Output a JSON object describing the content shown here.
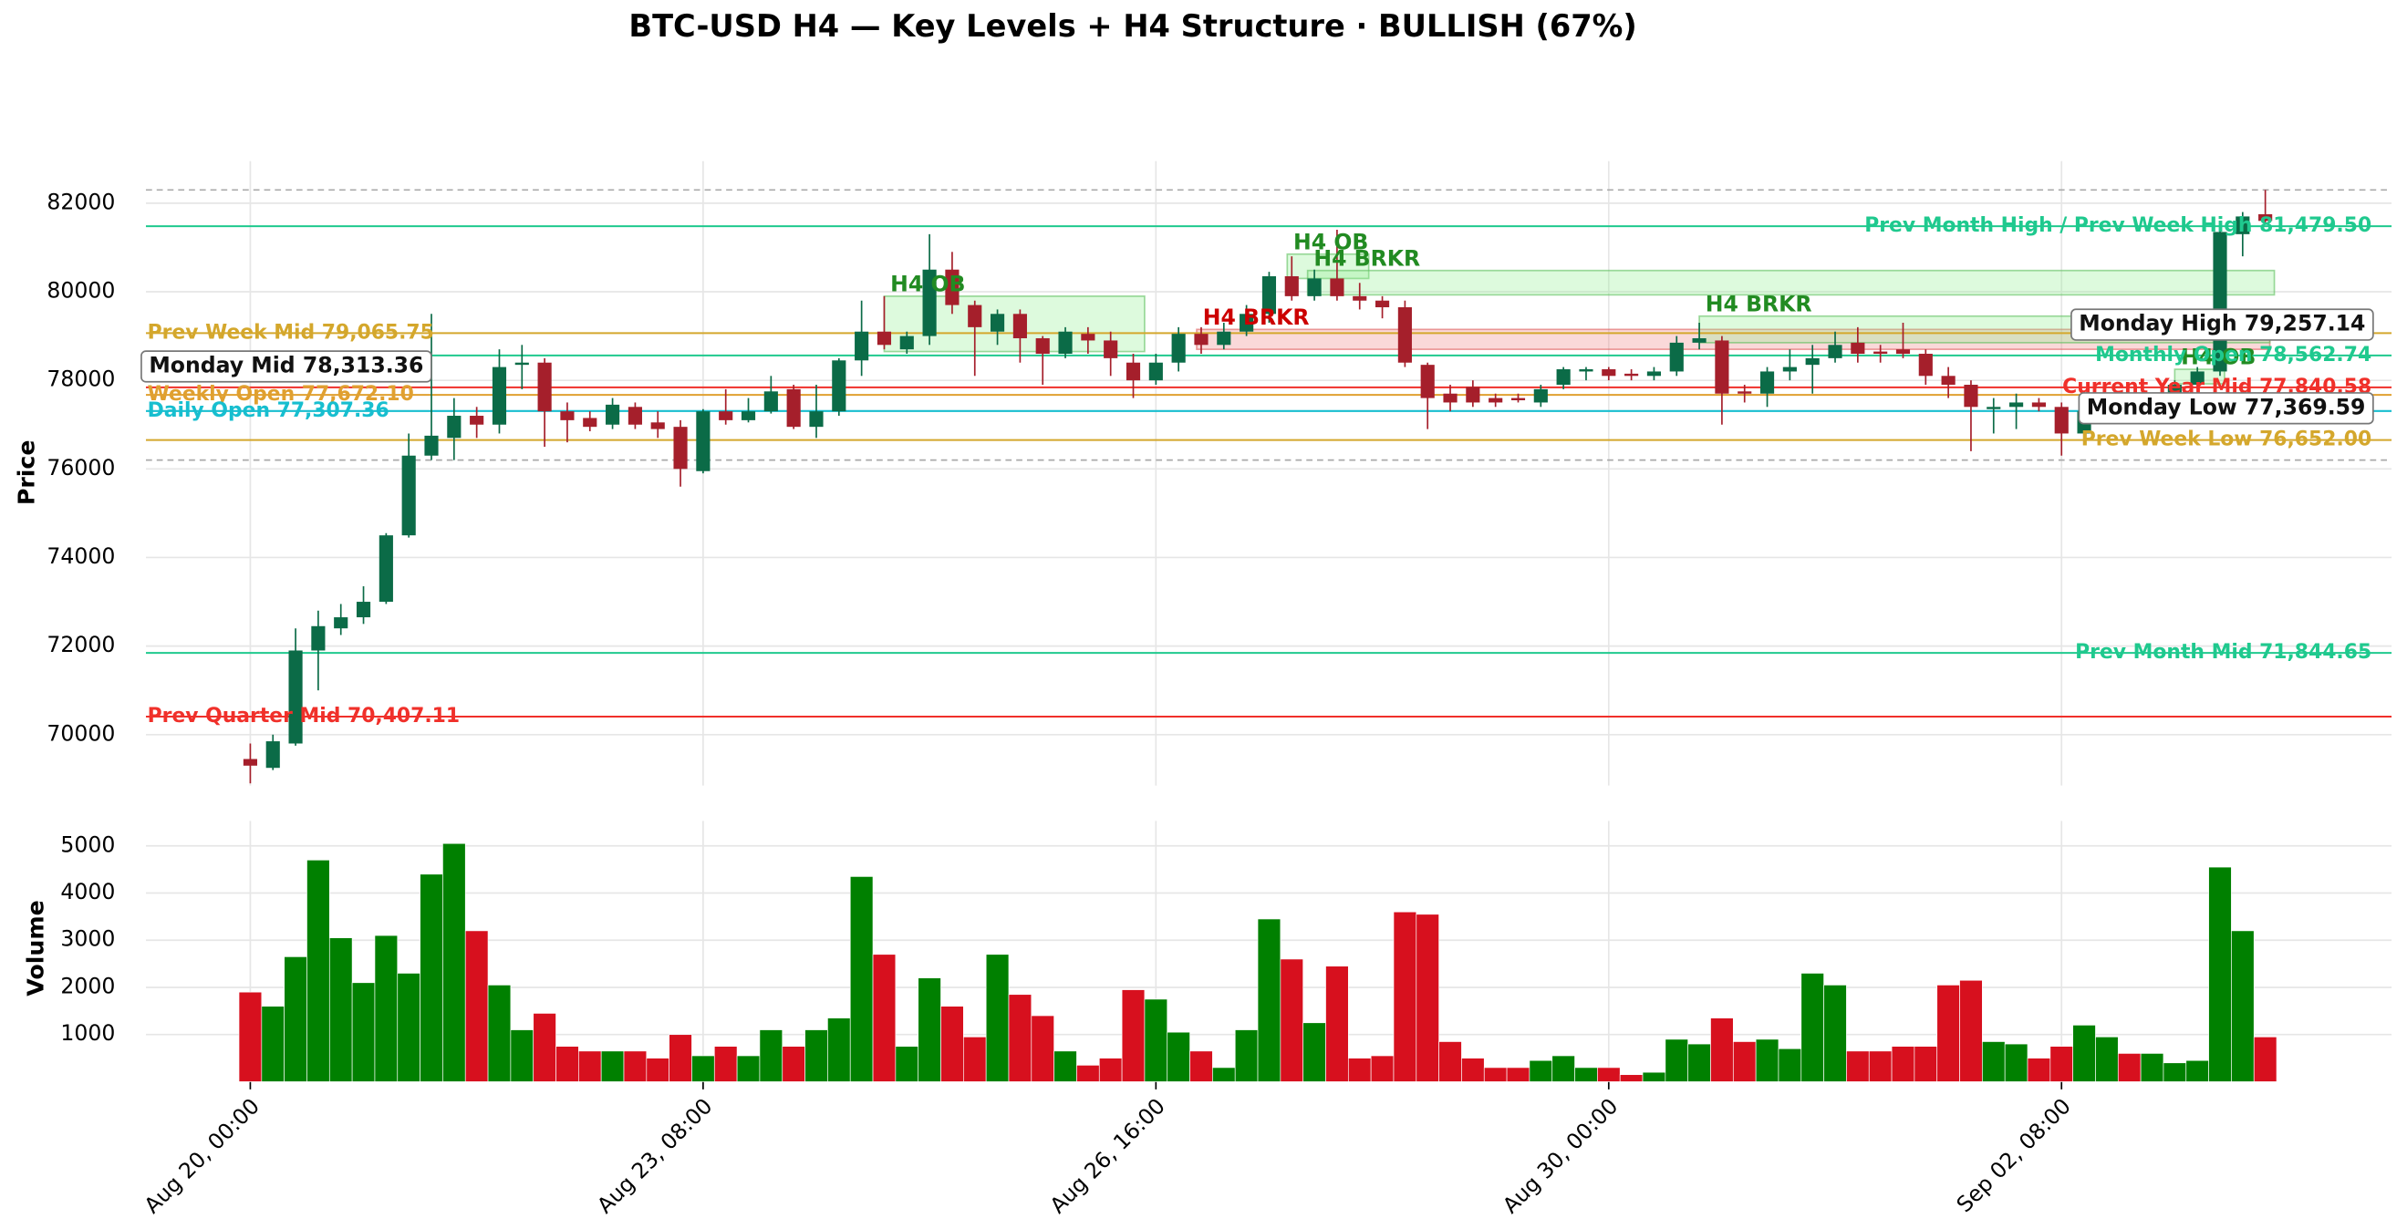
{
  "chart_data": {
    "type": "candlestick",
    "title": "BTC-USD H4 — Key Levels + H4 Structure · BULLISH (67%)",
    "ylabel": "Price",
    "categories": [
      "Aug 20, 00:00",
      null,
      null,
      null,
      null,
      null,
      null,
      null,
      null,
      null,
      null,
      null,
      null,
      null,
      null,
      null,
      null,
      null,
      null,
      null,
      "Aug 23, 08:00",
      null,
      null,
      null,
      null,
      null,
      null,
      null,
      null,
      null,
      null,
      null,
      null,
      null,
      null,
      null,
      null,
      null,
      null,
      null,
      "Aug 26, 16:00",
      null,
      null,
      null,
      null,
      null,
      null,
      null,
      null,
      null,
      null,
      null,
      null,
      null,
      null,
      null,
      null,
      null,
      null,
      null,
      "Aug 30, 00:00",
      null,
      null,
      null,
      null,
      null,
      null,
      null,
      null,
      null,
      null,
      null,
      null,
      null,
      null,
      null,
      null,
      null,
      null,
      null,
      "Sep 02, 08:00",
      null,
      null,
      null,
      null,
      null,
      null,
      null,
      null,
      null
    ],
    "open": [
      69450,
      69250,
      69800,
      71900,
      72400,
      72650,
      73000,
      74500,
      76300,
      76700,
      77200,
      77000,
      78350,
      78400,
      77300,
      77150,
      77000,
      77400,
      77050,
      76950,
      75950,
      77300,
      77100,
      77300,
      77800,
      76950,
      77300,
      78450,
      79100,
      78700,
      79000,
      80500,
      79700,
      79100,
      79500,
      78950,
      78600,
      79050,
      78900,
      78400,
      78000,
      78400,
      79050,
      78800,
      79100,
      79500,
      80350,
      79900,
      80300,
      79900,
      79800,
      79650,
      78350,
      77700,
      77850,
      77600,
      77600,
      77500,
      77900,
      78200,
      78250,
      78150,
      78100,
      78200,
      78850,
      78900,
      77750,
      77700,
      78200,
      78350,
      78500,
      78850,
      78650,
      78700,
      78600,
      78100,
      77900,
      77350,
      77400,
      77500,
      77400,
      76800,
      77350,
      77400,
      77350,
      77500,
      77900,
      78200,
      81300,
      81750
    ],
    "high": [
      69800,
      70000,
      72400,
      72800,
      72950,
      73350,
      74550,
      76800,
      79500,
      77600,
      77400,
      78700,
      78800,
      78500,
      77500,
      77300,
      77600,
      77500,
      77300,
      77100,
      77350,
      77800,
      77600,
      78100,
      77900,
      77900,
      78500,
      79800,
      79900,
      79100,
      81300,
      80900,
      79800,
      79600,
      79600,
      79000,
      79200,
      79200,
      79100,
      78600,
      78600,
      79200,
      79200,
      79300,
      79700,
      80450,
      80800,
      80500,
      81400,
      80200,
      79900,
      79800,
      78400,
      77900,
      78000,
      77700,
      77700,
      77900,
      78300,
      78300,
      78300,
      78250,
      78300,
      79000,
      79300,
      79000,
      77900,
      78300,
      78700,
      78800,
      79100,
      79200,
      78800,
      79300,
      78700,
      78300,
      78000,
      77600,
      77700,
      77600,
      77500,
      77400,
      77500,
      77500,
      77700,
      78000,
      78300,
      81450,
      81800,
      82300
    ],
    "low": [
      68900,
      69200,
      69750,
      71000,
      72250,
      72500,
      72950,
      74450,
      76200,
      76200,
      76700,
      76800,
      77800,
      76500,
      76600,
      76850,
      76900,
      76900,
      76700,
      75600,
      75900,
      77000,
      77050,
      77250,
      76900,
      76700,
      77200,
      78100,
      78700,
      78600,
      78800,
      79500,
      78100,
      78800,
      78400,
      77900,
      78500,
      78600,
      78100,
      77600,
      77900,
      78200,
      78600,
      78700,
      79000,
      79300,
      79800,
      79800,
      79800,
      79600,
      79400,
      78300,
      76900,
      77300,
      77400,
      77400,
      77500,
      77400,
      77800,
      78000,
      78000,
      78000,
      78000,
      78100,
      78700,
      77000,
      77500,
      77400,
      78000,
      77700,
      78400,
      78400,
      78400,
      78500,
      77900,
      77600,
      76400,
      76800,
      76900,
      77300,
      76300,
      76600,
      77200,
      77200,
      77200,
      77400,
      77800,
      78100,
      80800,
      81550
    ],
    "close": [
      69300,
      69850,
      71900,
      72450,
      72650,
      73000,
      74500,
      76300,
      76750,
      77200,
      77000,
      78300,
      78400,
      77300,
      77100,
      76950,
      77450,
      77000,
      76900,
      76000,
      77300,
      77100,
      77300,
      77750,
      76950,
      77300,
      78450,
      79100,
      78800,
      79000,
      80500,
      79700,
      79200,
      79500,
      78950,
      78600,
      79100,
      78900,
      78500,
      78000,
      78400,
      79050,
      78800,
      79100,
      79500,
      80350,
      79900,
      80300,
      79900,
      79800,
      79650,
      78400,
      77600,
      77500,
      77500,
      77500,
      77550,
      77800,
      78250,
      78250,
      78100,
      78100,
      78200,
      78850,
      78950,
      77700,
      77700,
      78200,
      78300,
      78500,
      78800,
      78600,
      78600,
      78600,
      78100,
      77900,
      77400,
      77400,
      77500,
      77400,
      76800,
      77300,
      77400,
      77350,
      77500,
      77900,
      78200,
      81350,
      81700,
      81600
    ],
    "colors": {
      "up": "#0b6b47",
      "down": "#a51f2b"
    },
    "ylim": [
      68850,
      82950
    ],
    "yticks": [
      70000,
      72000,
      74000,
      76000,
      78000,
      80000,
      82000
    ],
    "grid": true,
    "ref_lines": [
      82300,
      76200
    ],
    "levels": [
      {
        "label": "Prev Month High / Prev Week High 81,479.50",
        "value": 81479.5,
        "color": "#1fc98e",
        "side": "right"
      },
      {
        "label": "Prev Week Mid 79,065.75",
        "value": 79065.75,
        "color": "#d4a72c",
        "side": "left"
      },
      {
        "label": "Monthly Open 78,562.74",
        "value": 78562.74,
        "color": "#1fc98e",
        "side": "right"
      },
      {
        "label": "Current Year Mid 77,840.58",
        "value": 77840.58,
        "color": "#f0302a",
        "side": "right"
      },
      {
        "label": "Weekly Open 77,672.10",
        "value": 77672.1,
        "color": "#e0a030",
        "side": "left"
      },
      {
        "label": "Daily Open 77,307.36",
        "value": 77307.36,
        "color": "#17becf",
        "side": "left"
      },
      {
        "label": "Prev Week Low 76,652.00",
        "value": 76652,
        "color": "#d4a72c",
        "side": "right"
      },
      {
        "label": "Prev Month Mid 71,844.65",
        "value": 71844.65,
        "color": "#1fc98e",
        "side": "right"
      },
      {
        "label": "Prev Quarter Mid 70,407.11",
        "value": 70407.11,
        "color": "#f0302a",
        "side": "left"
      }
    ],
    "boxed_levels": [
      {
        "label": "Monday High 79,257.14",
        "value": 79257.14,
        "side": "right"
      },
      {
        "label": "Monday Mid 78,313.36",
        "value": 78313.36,
        "side": "left"
      },
      {
        "label": "Monday Low 77,369.59",
        "value": 77369.59,
        "side": "right"
      }
    ],
    "zones": [
      {
        "label": "H4 OB",
        "start": 28,
        "end": 39.5,
        "low": 78650,
        "high": 79900,
        "color": "#228b22"
      },
      {
        "label": "H4 OB",
        "start": 45.8,
        "end": 49.4,
        "low": 80300,
        "high": 80850,
        "color": "#228b22"
      },
      {
        "label": "H4 BRKR",
        "start": 46.7,
        "end": 89.4,
        "low": 79930,
        "high": 80480,
        "color": "#228b22"
      },
      {
        "label": "H4 BRKR",
        "start": 41.8,
        "end": 89.2,
        "low": 78700,
        "high": 79150,
        "color": "#cc0000"
      },
      {
        "label": "H4 BRKR",
        "start": 64,
        "end": 89.2,
        "low": 78850,
        "high": 79450,
        "color": "#228b22"
      },
      {
        "label": "H4 OB",
        "start": 85,
        "end": 87.2,
        "low": 77920,
        "high": 78250,
        "color": "#228b22"
      }
    ],
    "volume": {
      "ylabel": "Volume",
      "values": [
        1900,
        1600,
        2650,
        4700,
        3050,
        2100,
        3100,
        2300,
        4400,
        5050,
        3200,
        2050,
        1100,
        1450,
        750,
        650,
        650,
        650,
        500,
        1000,
        550,
        750,
        550,
        1100,
        750,
        1100,
        1350,
        4350,
        2700,
        750,
        2200,
        1600,
        950,
        2700,
        1850,
        1400,
        650,
        350,
        500,
        1950,
        1750,
        1050,
        650,
        300,
        1100,
        3450,
        2600,
        1250,
        2450,
        500,
        550,
        3600,
        3550,
        850,
        500,
        300,
        300,
        450,
        550,
        300,
        300,
        150,
        200,
        900,
        800,
        1350,
        850,
        900,
        700,
        2300,
        2050,
        650,
        650,
        750,
        750,
        2050,
        2150,
        850,
        800,
        500,
        750,
        1200,
        950,
        600,
        600,
        400,
        450,
        4550,
        3200,
        950
      ],
      "colors": {
        "up": "#008000",
        "down": "#d7101e"
      },
      "ylim": [
        0,
        5530
      ],
      "yticks": [
        1000,
        2000,
        3000,
        4000,
        5000
      ]
    }
  }
}
